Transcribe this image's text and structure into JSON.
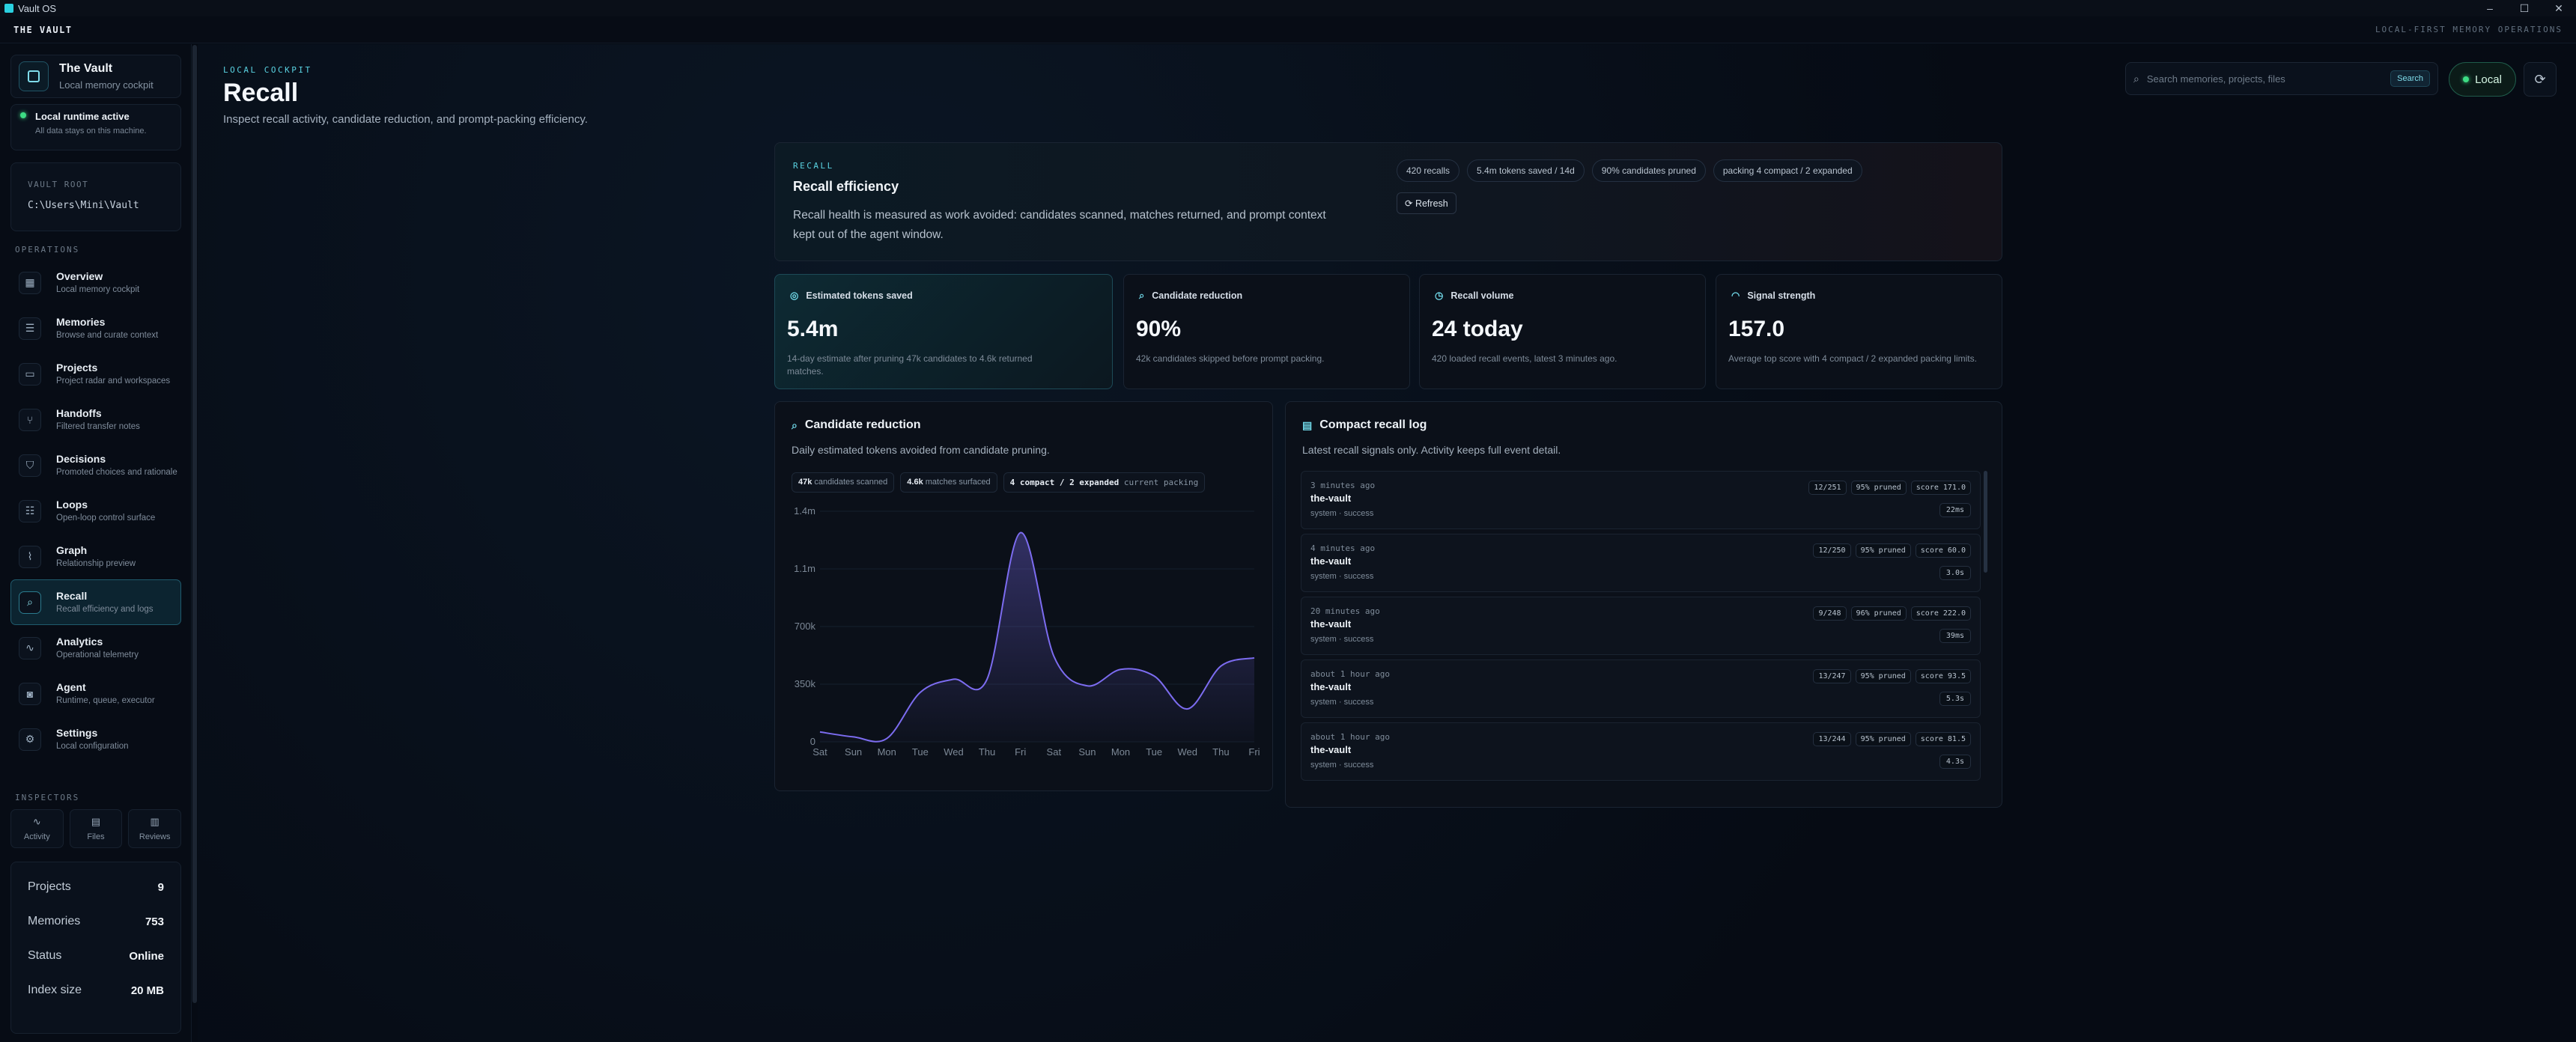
{
  "window": {
    "title": "Vault OS",
    "controls": [
      "–",
      "☐",
      "✕"
    ]
  },
  "menubar": {
    "brand": "THE VAULT",
    "tagline": "LOCAL-FIRST MEMORY OPERATIONS"
  },
  "sidebar": {
    "app": {
      "name": "The Vault",
      "subtitle": "Local memory cockpit"
    },
    "runtime": {
      "title": "Local runtime active",
      "subtitle": "All data stays on this machine."
    },
    "vault_root": {
      "label": "VAULT ROOT",
      "value": "C:\\Users\\Mini\\Vault"
    },
    "operations_label": "OPERATIONS",
    "nav": [
      {
        "label": "Overview",
        "sub": "Local memory cockpit",
        "icon": "grid-icon",
        "glyph": "▦"
      },
      {
        "label": "Memories",
        "sub": "Browse and curate context",
        "icon": "database-icon",
        "glyph": "☰"
      },
      {
        "label": "Projects",
        "sub": "Project radar and workspaces",
        "icon": "folder-icon",
        "glyph": "▭"
      },
      {
        "label": "Handoffs",
        "sub": "Filtered transfer notes",
        "icon": "branch-icon",
        "glyph": "⑂"
      },
      {
        "label": "Decisions",
        "sub": "Promoted choices and rationale",
        "icon": "shield-icon",
        "glyph": "⛉"
      },
      {
        "label": "Loops",
        "sub": "Open-loop control surface",
        "icon": "list-icon",
        "glyph": "☷"
      },
      {
        "label": "Graph",
        "sub": "Relationship preview",
        "icon": "graph-icon",
        "glyph": "⌇"
      },
      {
        "label": "Recall",
        "sub": "Recall efficiency and logs",
        "icon": "search-icon",
        "glyph": "⌕"
      },
      {
        "label": "Analytics",
        "sub": "Operational telemetry",
        "icon": "activity-icon",
        "glyph": "∿"
      },
      {
        "label": "Agent",
        "sub": "Runtime, queue, executor",
        "icon": "bot-icon",
        "glyph": "◙"
      },
      {
        "label": "Settings",
        "sub": "Local configuration",
        "icon": "gear-icon",
        "glyph": "⚙"
      }
    ],
    "inspectors_label": "INSPECTORS",
    "inspectors": [
      {
        "label": "Activity",
        "glyph": "∿"
      },
      {
        "label": "Files",
        "glyph": "▤"
      },
      {
        "label": "Reviews",
        "glyph": "▥"
      }
    ],
    "stats": [
      {
        "key": "Projects",
        "value": "9"
      },
      {
        "key": "Memories",
        "value": "753"
      },
      {
        "key": "Status",
        "value": "Online"
      },
      {
        "key": "Index size",
        "value": "20 MB"
      }
    ]
  },
  "header": {
    "kicker": "LOCAL COCKPIT",
    "title": "Recall",
    "subtitle": "Inspect recall activity, candidate reduction, and prompt-packing efficiency.",
    "search_placeholder": "Search memories, projects, files",
    "search_button": "Search",
    "local_label": "Local"
  },
  "hero": {
    "kicker": "RECALL",
    "title": "Recall efficiency",
    "description": "Recall health is measured as work avoided: candidates scanned, matches returned, and prompt context kept out of the agent window.",
    "chips": [
      "420 recalls",
      "5.4m tokens saved / 14d",
      "90% candidates pruned",
      "packing 4 compact / 2 expanded"
    ],
    "refresh_label": "Refresh"
  },
  "metrics": [
    {
      "label": "Estimated tokens saved",
      "value": "5.4m",
      "note": "14-day estimate after pruning 47k candidates to 4.6k returned matches.",
      "glyph": "◎"
    },
    {
      "label": "Candidate reduction",
      "value": "90%",
      "note": "42k candidates skipped before prompt packing.",
      "glyph": "⌕"
    },
    {
      "label": "Recall volume",
      "value": "24 today",
      "note": "420 loaded recall events, latest 3 minutes ago.",
      "glyph": "◷"
    },
    {
      "label": "Signal strength",
      "value": "157.0",
      "note": "Average top score with 4 compact / 2 expanded packing limits.",
      "glyph": "◠"
    }
  ],
  "candidate": {
    "title": "Candidate reduction",
    "description": "Daily estimated tokens avoided from candidate pruning.",
    "tags": [
      {
        "strong": "47k",
        "text": "candidates scanned"
      },
      {
        "strong": "4.6k",
        "text": "matches surfaced"
      },
      {
        "strong": "4 compact / 2 expanded",
        "text": "current packing"
      }
    ]
  },
  "chart_data": {
    "type": "area",
    "title": "",
    "x": [
      "Sat",
      "Sun",
      "Mon",
      "Tue",
      "Wed",
      "Thu",
      "Fri",
      "Sat",
      "Sun",
      "Mon",
      "Tue",
      "Wed",
      "Thu",
      "Fri"
    ],
    "y_ticks": [
      "0",
      "350k",
      "700k",
      "1.1m",
      "1.4m"
    ],
    "ylim": [
      0,
      1400000
    ],
    "series": [
      {
        "values": [
          60000,
          30000,
          20000,
          300000,
          380000,
          380000,
          1270000,
          520000,
          340000,
          440000,
          400000,
          200000,
          460000,
          510000
        ]
      }
    ],
    "color": "#7c6cf0",
    "grid": true
  },
  "log": {
    "title": "Compact recall log",
    "description": "Latest recall signals only. Activity keeps full event detail.",
    "rows": [
      {
        "when": "3 minutes ago",
        "project": "the-vault",
        "source": "system · success",
        "tags": [
          "12/251",
          "95% pruned",
          "score 171.0"
        ],
        "duration": "22ms"
      },
      {
        "when": "4 minutes ago",
        "project": "the-vault",
        "source": "system · success",
        "tags": [
          "12/250",
          "95% pruned",
          "score 60.0"
        ],
        "duration": "3.0s"
      },
      {
        "when": "20 minutes ago",
        "project": "the-vault",
        "source": "system · success",
        "tags": [
          "9/248",
          "96% pruned",
          "score 222.0"
        ],
        "duration": "39ms"
      },
      {
        "when": "about 1 hour ago",
        "project": "the-vault",
        "source": "system · success",
        "tags": [
          "13/247",
          "95% pruned",
          "score 93.5"
        ],
        "duration": "5.3s"
      },
      {
        "when": "about 1 hour ago",
        "project": "the-vault",
        "source": "system · success",
        "tags": [
          "13/244",
          "95% pruned",
          "score 81.5"
        ],
        "duration": "4.3s"
      }
    ]
  }
}
